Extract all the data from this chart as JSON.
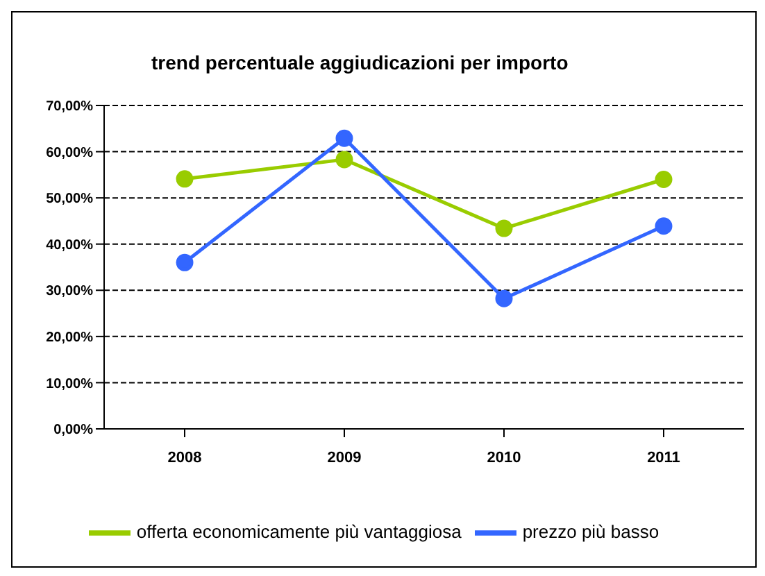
{
  "chart_data": {
    "type": "line",
    "title": "trend percentuale aggiudicazioni per importo",
    "categories": [
      "2008",
      "2009",
      "2010",
      "2011"
    ],
    "series": [
      {
        "name": "offerta economicamente più vantaggiosa",
        "color": "#99cc00",
        "values": [
          54.1,
          58.3,
          43.4,
          54.0
        ]
      },
      {
        "name": "prezzo più basso",
        "color": "#3366ff",
        "values": [
          36.0,
          62.9,
          28.2,
          43.9
        ]
      }
    ],
    "ylim": [
      0,
      70
    ],
    "yticks": [
      {
        "value": 0,
        "label": "0,00%"
      },
      {
        "value": 10,
        "label": "10,00%"
      },
      {
        "value": 20,
        "label": "20,00%"
      },
      {
        "value": 30,
        "label": "30,00%"
      },
      {
        "value": 40,
        "label": "40,00%"
      },
      {
        "value": 50,
        "label": "50,00%"
      },
      {
        "value": 60,
        "label": "60,00%"
      },
      {
        "value": 70,
        "label": "70,00%"
      }
    ],
    "grid": "y",
    "legend": "bottom",
    "marker": "circle",
    "line_style": "solid"
  }
}
